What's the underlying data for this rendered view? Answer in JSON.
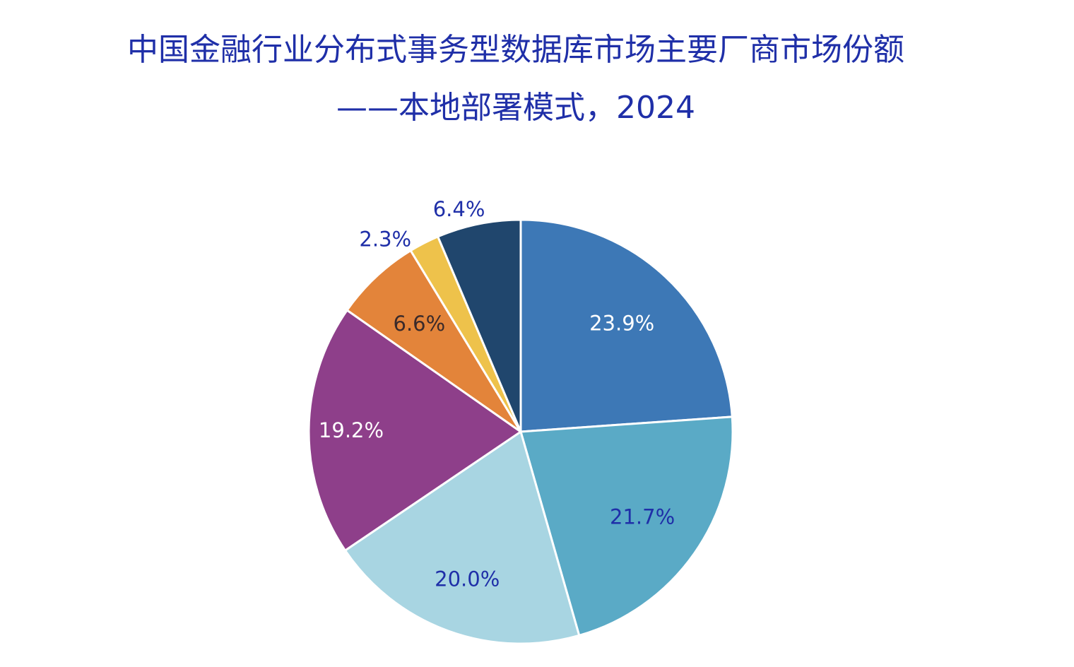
{
  "chart_data": {
    "type": "pie",
    "title": "中国金融行业分布式事务型数据库市场主要厂商市场份额",
    "subtitle": "——本地部署模式，2024",
    "values": [
      23.9,
      21.7,
      20.0,
      19.2,
      6.6,
      2.3,
      6.4
    ],
    "labels": [
      "23.9%",
      "21.7%",
      "20.0%",
      "19.2%",
      "6.6%",
      "2.3%",
      "6.4%"
    ],
    "colors": [
      "#3d78b6",
      "#5aaac6",
      "#a8d5e2",
      "#8e3f8a",
      "#e3843a",
      "#eec24b",
      "#20466d"
    ],
    "label_colors": [
      "#ffffff",
      "#1f2fa8",
      "#1f2fa8",
      "#ffffff",
      "#3a2a2a",
      "#1f2fa8",
      "#1f2fa8"
    ],
    "label_position": [
      "inside",
      "inside",
      "inside",
      "inside",
      "inside",
      "outside",
      "outside"
    ],
    "start": "12 o'clock",
    "direction": "clockwise",
    "legend": "none"
  }
}
